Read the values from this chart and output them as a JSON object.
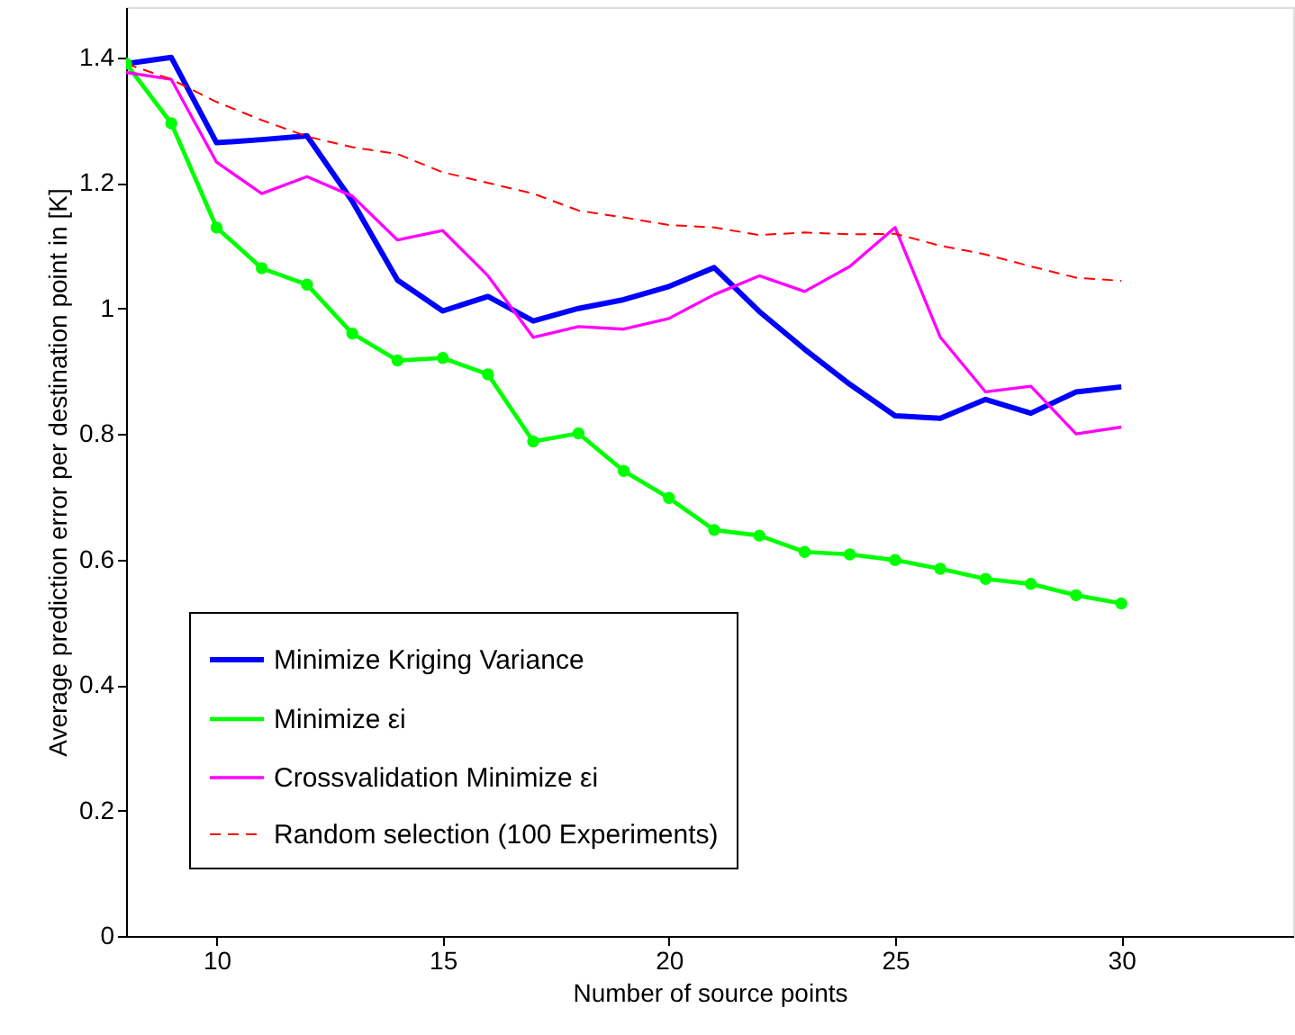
{
  "chart_data": {
    "type": "line",
    "xlabel": "Number of source points",
    "ylabel": "Average prediction error per destination point in [K]",
    "x": [
      8,
      9,
      10,
      11,
      12,
      13,
      14,
      15,
      16,
      17,
      18,
      19,
      20,
      21,
      22,
      23,
      24,
      25,
      26,
      27,
      28,
      29,
      30
    ],
    "series": [
      {
        "name": "Minimize Kriging Variance",
        "color": "#0000ff",
        "line_style": "solid",
        "values": [
          1.39,
          1.4,
          1.264,
          1.269,
          1.275,
          1.171,
          1.045,
          0.996,
          1.019,
          0.98,
          1.0,
          1.014,
          1.035,
          1.065,
          0.995,
          0.935,
          0.879,
          0.829,
          0.825,
          0.855,
          0.833,
          0.867,
          0.875
        ]
      },
      {
        "name": "Minimize εi",
        "color": "#00ff00",
        "line_style": "solid",
        "marker": "circle",
        "values": [
          1.39,
          1.295,
          1.129,
          1.064,
          1.038,
          0.96,
          0.917,
          0.921,
          0.895,
          0.788,
          0.801,
          0.741,
          0.698,
          0.647,
          0.638,
          0.612,
          0.608,
          0.599,
          0.585,
          0.569,
          0.561,
          0.543,
          0.53
        ]
      },
      {
        "name": "Crossvalidation Minimize εi",
        "color": "#ff00ff",
        "line_style": "solid",
        "values": [
          1.376,
          1.365,
          1.233,
          1.183,
          1.21,
          1.179,
          1.109,
          1.124,
          1.052,
          0.954,
          0.971,
          0.967,
          0.984,
          1.022,
          1.052,
          1.027,
          1.067,
          1.129,
          0.954,
          0.867,
          0.876,
          0.8,
          0.811
        ]
      },
      {
        "name": "Random selection (100 Experiments)",
        "color": "#ff0000",
        "line_style": "dashed",
        "values": [
          1.39,
          1.365,
          1.329,
          1.3,
          1.274,
          1.257,
          1.246,
          1.217,
          1.2,
          1.183,
          1.156,
          1.145,
          1.133,
          1.129,
          1.117,
          1.121,
          1.118,
          1.119,
          1.1,
          1.086,
          1.067,
          1.049,
          1.044
        ]
      }
    ],
    "xlim": [
      8,
      33.8
    ],
    "xticks": [
      10,
      15,
      20,
      25,
      30
    ],
    "ylim": [
      0,
      1.48
    ],
    "yticks": [
      0,
      0.2,
      0.4,
      0.6,
      0.8,
      1,
      1.2,
      1.4
    ],
    "grid": false,
    "legend": "bottom left"
  }
}
